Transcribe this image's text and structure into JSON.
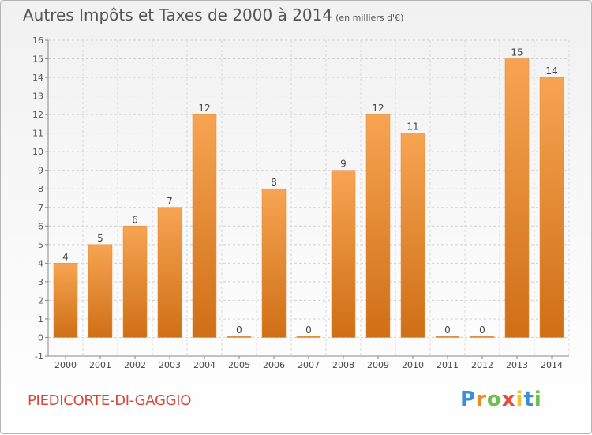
{
  "header": {
    "title": "Autres Impôts et Taxes de 2000 à 2014",
    "subtitle": "(en milliers d'€)"
  },
  "footer": {
    "place": "PIEDICORTE-DI-GAGGIO",
    "logo_letters": [
      "P",
      "r",
      "o",
      "x",
      "i",
      "t",
      "i"
    ],
    "logo_colors": [
      "#3a8fd8",
      "#f08a1e",
      "#6cc04a",
      "#e84d3c",
      "#f5c028",
      "#3a8fd8",
      "#6cc04a"
    ]
  },
  "chart_data": {
    "type": "bar",
    "categories": [
      "2000",
      "2001",
      "2002",
      "2003",
      "2004",
      "2005",
      "2006",
      "2007",
      "2008",
      "2009",
      "2010",
      "2011",
      "2012",
      "2013",
      "2014"
    ],
    "values": [
      4,
      5,
      6,
      7,
      12,
      0,
      8,
      0,
      9,
      12,
      11,
      0,
      0,
      15,
      14
    ],
    "title": "Autres Impôts et Taxes de 2000 à 2014",
    "ylim": [
      -1,
      16
    ],
    "yticks": [
      -1,
      0,
      1,
      2,
      3,
      4,
      5,
      6,
      7,
      8,
      9,
      10,
      11,
      12,
      13,
      14,
      15,
      16
    ],
    "grid": true,
    "bar_color_top": "#f7a452",
    "bar_color_bottom": "#cf6f16"
  }
}
